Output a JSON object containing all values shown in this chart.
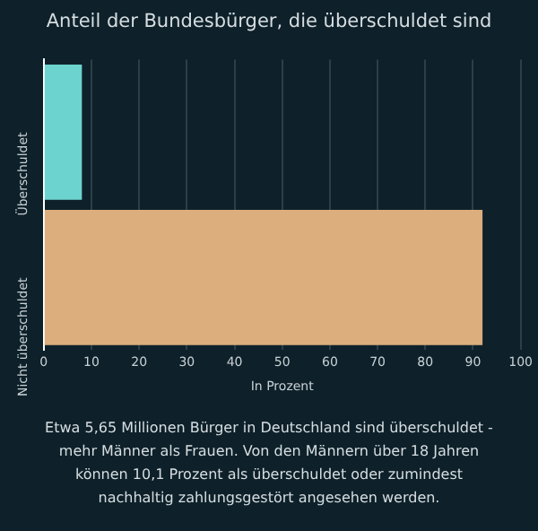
{
  "chart_data": {
    "type": "bar",
    "orientation": "horizontal",
    "title": "Anteil der Bundesbürger, die überschuldet sind",
    "categories": [
      "Überschuldet",
      "Nicht überschuldet"
    ],
    "values": [
      8,
      92
    ],
    "colors": [
      "#6dd3cf",
      "#dcae7e"
    ],
    "xlabel": "In Prozent",
    "xlim": [
      0,
      100
    ],
    "xticks": [
      0,
      10,
      20,
      30,
      40,
      50,
      60,
      70,
      80,
      90,
      100
    ],
    "grid": "x",
    "legend": false,
    "annotations": [
      "Etwa 5,65 Millionen Bürger in Deutschland sind überschuldet - mehr Männer als Frauen. Von den Männern über 18 Jahren können 10,1 Prozent als überschuldet oder zumindest nachhaltig zahlungsgestört angesehen werden."
    ]
  }
}
